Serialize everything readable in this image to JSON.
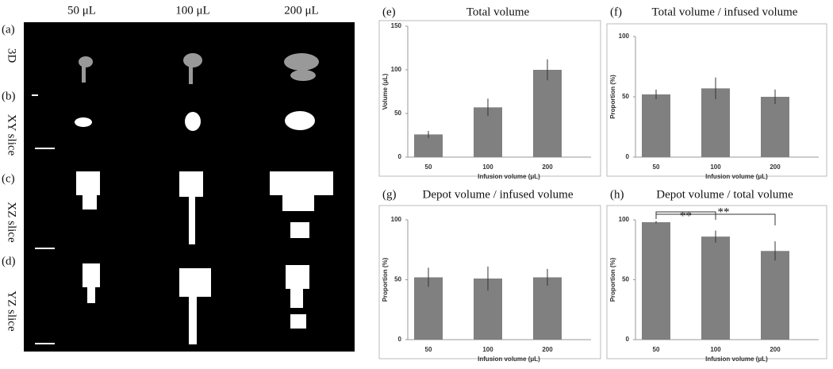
{
  "images": {
    "columns": [
      "50 μL",
      "100 μL",
      "200 μL"
    ],
    "rows": [
      {
        "label": "(a)",
        "name": "3D"
      },
      {
        "label": "(b)",
        "name": "XY slice"
      },
      {
        "label": "(c)",
        "name": "XZ slice"
      },
      {
        "label": "(d)",
        "name": "YZ slice"
      }
    ]
  },
  "chart_data": [
    {
      "type": "bar",
      "label": "(e)",
      "title": "Total volume",
      "ylabel": "Volume (μL)",
      "xlabel": "Infusion volume (μL)",
      "categories": [
        "50",
        "100",
        "200"
      ],
      "values": [
        26,
        57,
        100
      ],
      "errors": [
        4,
        10,
        12
      ],
      "color": "#808080",
      "ylim": [
        0,
        150
      ],
      "yticks": [
        0,
        50,
        100,
        150
      ]
    },
    {
      "type": "bar",
      "label": "(f)",
      "title": "Total volume / infused volume",
      "ylabel": "Proportion (%)",
      "xlabel": "Infusion volume (μL)",
      "categories": [
        "50",
        "100",
        "200"
      ],
      "values": [
        52,
        57,
        50
      ],
      "errors": [
        4,
        9,
        6
      ],
      "color": "#808080",
      "ylim": [
        0,
        100
      ],
      "yticks": [
        0,
        50,
        100
      ]
    },
    {
      "type": "bar",
      "label": "(g)",
      "title": "Depot volume / infused volume",
      "ylabel": "Proportion (%)",
      "xlabel": "Infusion volume (μL)",
      "categories": [
        "50",
        "100",
        "200"
      ],
      "values": [
        52,
        51,
        52
      ],
      "errors": [
        8,
        10,
        7
      ],
      "color": "#808080",
      "ylim": [
        0,
        100
      ],
      "yticks": [
        0,
        50,
        100
      ]
    },
    {
      "type": "bar",
      "label": "(h)",
      "title": "Depot volume / total volume",
      "ylabel": "Proportion (%)",
      "xlabel": "Infusion volume (μL)",
      "categories": [
        "50",
        "100",
        "200"
      ],
      "values": [
        98,
        86,
        74
      ],
      "errors": [
        1,
        5,
        8
      ],
      "color": "#808080",
      "ylim": [
        0,
        100
      ],
      "yticks": [
        0,
        50,
        100
      ],
      "annotations": [
        "**",
        "**"
      ]
    }
  ]
}
